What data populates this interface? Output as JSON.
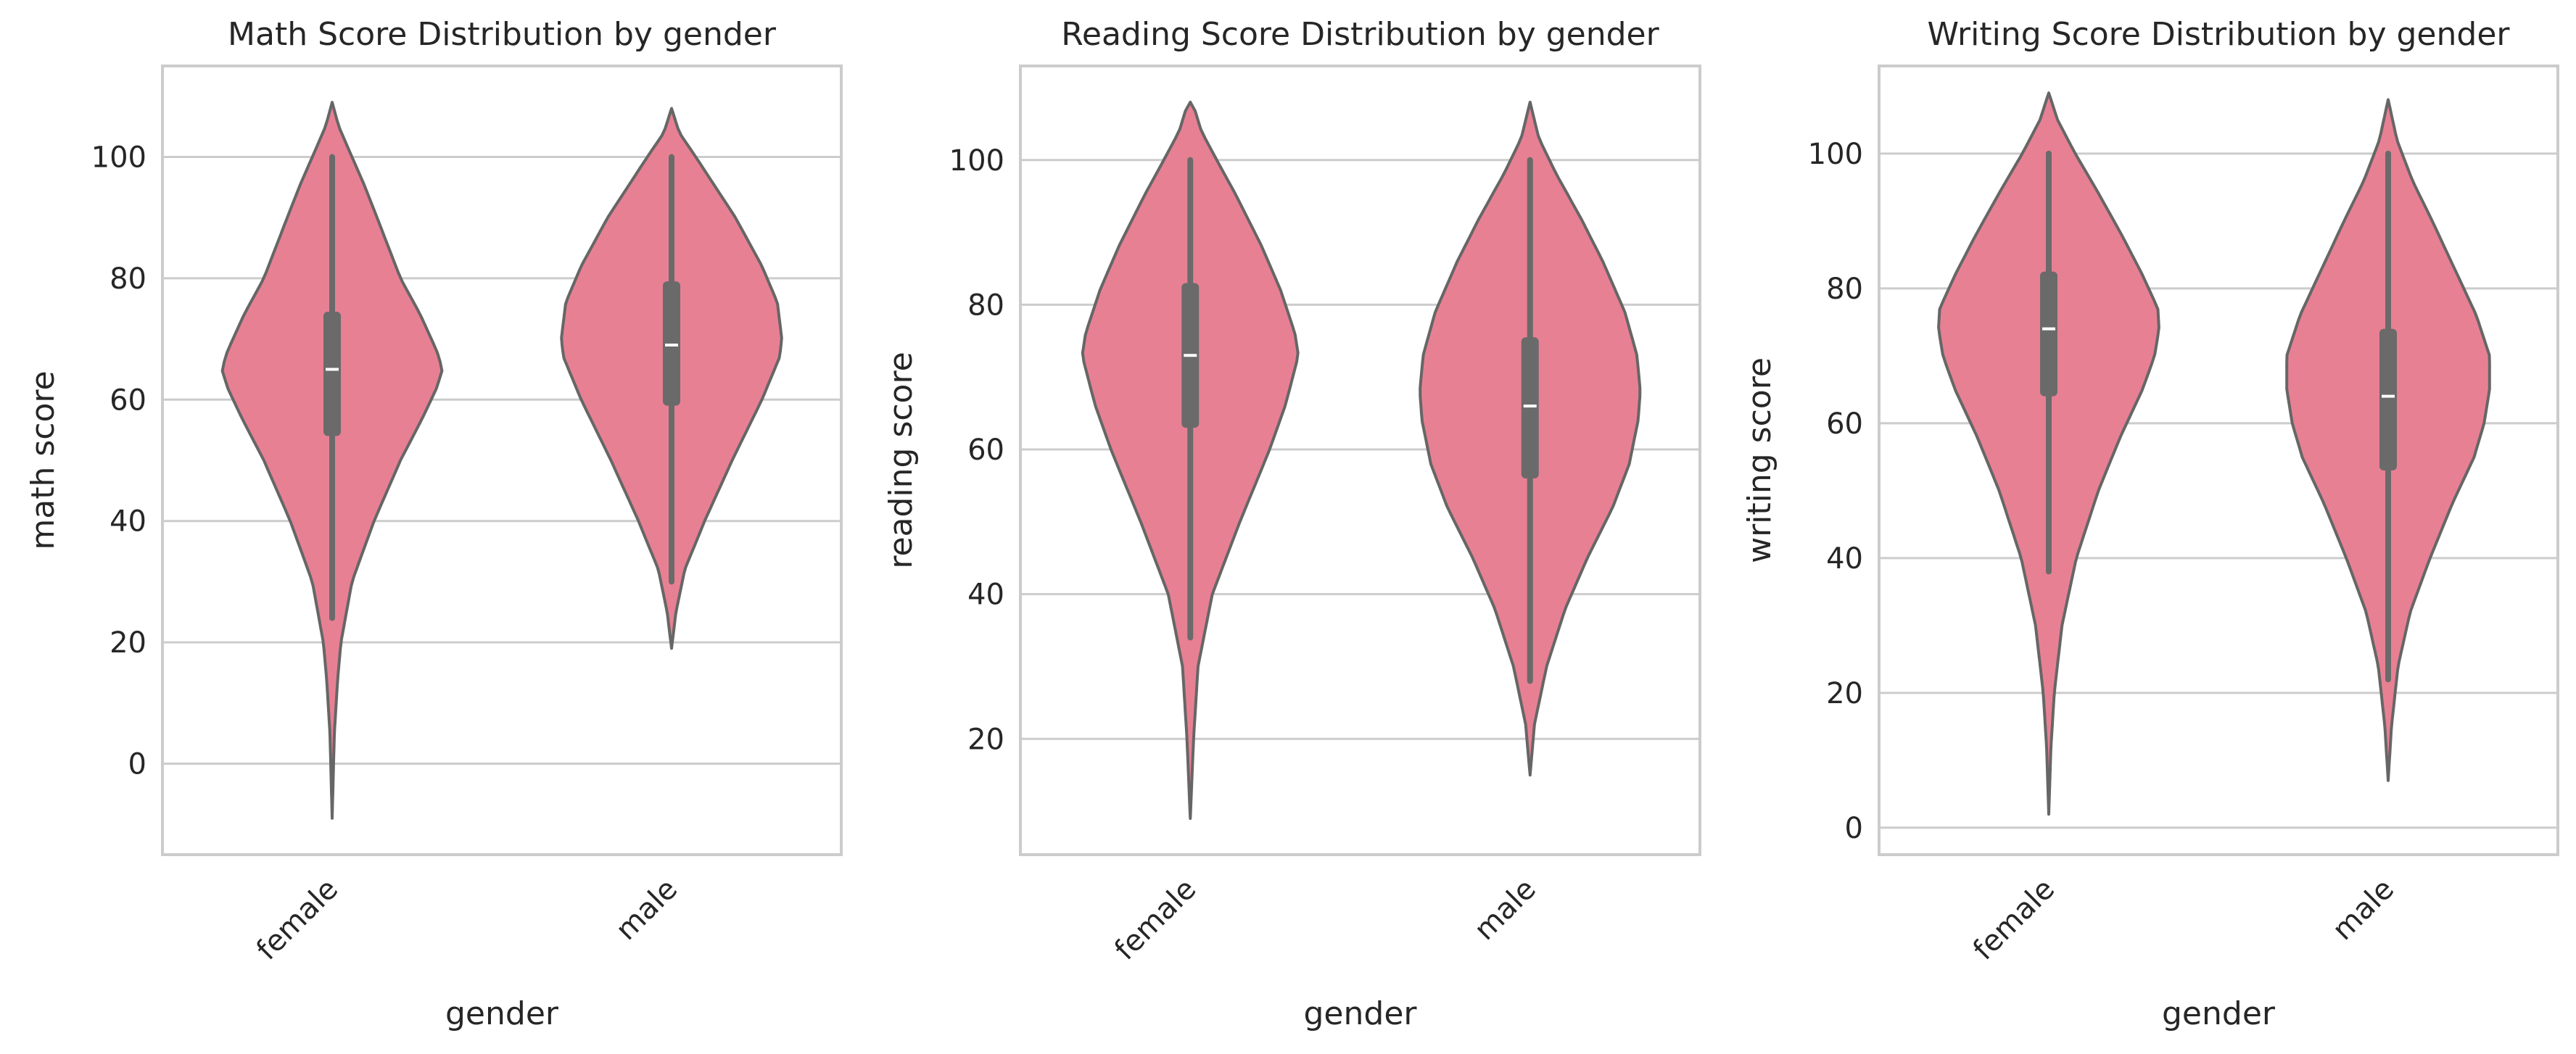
{
  "colors": {
    "violin_fill": "#e88093",
    "violin_edge": "#666666",
    "box": "#6a6a6a",
    "median": "#ffffff",
    "grid": "#cccccc",
    "frame": "#cccccc"
  },
  "chart_data": [
    {
      "type": "violin",
      "title": "Math Score Distribution by gender",
      "xlabel": "gender",
      "ylabel": "math score",
      "categories": [
        "female",
        "male"
      ],
      "ylim": [
        -15,
        115
      ],
      "yticks": [
        0,
        20,
        40,
        60,
        80,
        100
      ],
      "yticklabels": [
        "0",
        "20",
        "40",
        "60",
        "80",
        "100"
      ],
      "grid": true,
      "violins": [
        {
          "category": "female",
          "extent": [
            -9,
            109
          ],
          "box": {
            "q1": 54,
            "median": 65,
            "q3": 74.5,
            "whisker_low": 24,
            "whisker_high": 100
          },
          "profile": [
            [
              -9,
              0
            ],
            [
              5,
              0.02
            ],
            [
              14,
              0.05
            ],
            [
              20,
              0.08
            ],
            [
              30,
              0.18
            ],
            [
              40,
              0.38
            ],
            [
              50,
              0.62
            ],
            [
              57,
              0.82
            ],
            [
              62,
              0.95
            ],
            [
              65,
              1.0
            ],
            [
              68,
              0.95
            ],
            [
              74,
              0.8
            ],
            [
              80,
              0.62
            ],
            [
              88,
              0.45
            ],
            [
              95,
              0.3
            ],
            [
              100,
              0.18
            ],
            [
              105,
              0.06
            ],
            [
              109,
              0
            ]
          ]
        },
        {
          "category": "male",
          "extent": [
            19,
            108
          ],
          "box": {
            "q1": 59,
            "median": 69,
            "q3": 79.5,
            "whisker_low": 30,
            "whisker_high": 100
          },
          "profile": [
            [
              19,
              0
            ],
            [
              25,
              0.04
            ],
            [
              32,
              0.12
            ],
            [
              40,
              0.3
            ],
            [
              50,
              0.55
            ],
            [
              60,
              0.82
            ],
            [
              67,
              0.98
            ],
            [
              70,
              1.0
            ],
            [
              76,
              0.96
            ],
            [
              82,
              0.82
            ],
            [
              90,
              0.58
            ],
            [
              95,
              0.4
            ],
            [
              100,
              0.22
            ],
            [
              104,
              0.07
            ],
            [
              108,
              0
            ]
          ]
        }
      ]
    },
    {
      "type": "violin",
      "title": "Reading Score Distribution by gender",
      "xlabel": "gender",
      "ylabel": "reading score",
      "categories": [
        "female",
        "male"
      ],
      "ylim": [
        4,
        113
      ],
      "yticks": [
        20,
        40,
        60,
        80,
        100
      ],
      "yticklabels": [
        "20",
        "40",
        "60",
        "80",
        "100"
      ],
      "grid": true,
      "violins": [
        {
          "category": "female",
          "extent": [
            9,
            108
          ],
          "box": {
            "q1": 63,
            "median": 73,
            "q3": 83,
            "whisker_low": 34,
            "whisker_high": 100
          },
          "profile": [
            [
              9,
              0
            ],
            [
              20,
              0.03
            ],
            [
              30,
              0.07
            ],
            [
              40,
              0.2
            ],
            [
              50,
              0.45
            ],
            [
              60,
              0.72
            ],
            [
              66,
              0.86
            ],
            [
              70,
              0.93
            ],
            [
              73,
              0.98
            ],
            [
              76,
              0.95
            ],
            [
              82,
              0.82
            ],
            [
              88,
              0.65
            ],
            [
              95,
              0.42
            ],
            [
              100,
              0.24
            ],
            [
              104,
              0.1
            ],
            [
              107,
              0.04
            ],
            [
              108,
              0
            ]
          ]
        },
        {
          "category": "male",
          "extent": [
            15,
            108
          ],
          "box": {
            "q1": 56,
            "median": 66,
            "q3": 75.5,
            "whisker_low": 28,
            "whisker_high": 100
          },
          "profile": [
            [
              15,
              0
            ],
            [
              22,
              0.04
            ],
            [
              30,
              0.15
            ],
            [
              38,
              0.32
            ],
            [
              45,
              0.52
            ],
            [
              52,
              0.75
            ],
            [
              58,
              0.9
            ],
            [
              64,
              0.98
            ],
            [
              68,
              1.0
            ],
            [
              73,
              0.97
            ],
            [
              79,
              0.86
            ],
            [
              86,
              0.66
            ],
            [
              92,
              0.46
            ],
            [
              98,
              0.24
            ],
            [
              103,
              0.08
            ],
            [
              108,
              0
            ]
          ]
        }
      ]
    },
    {
      "type": "violin",
      "title": "Writing Score Distribution by gender",
      "xlabel": "gender",
      "ylabel": "writing score",
      "categories": [
        "female",
        "male"
      ],
      "ylim": [
        -4,
        113
      ],
      "yticks": [
        0,
        20,
        40,
        60,
        80,
        100
      ],
      "yticklabels": [
        "0",
        "20",
        "40",
        "60",
        "80",
        "100"
      ],
      "grid": true,
      "violins": [
        {
          "category": "female",
          "extent": [
            2,
            109
          ],
          "box": {
            "q1": 64,
            "median": 74,
            "q3": 82.5,
            "whisker_low": 38,
            "whisker_high": 100
          },
          "profile": [
            [
              2,
              0
            ],
            [
              12,
              0.02
            ],
            [
              20,
              0.05
            ],
            [
              30,
              0.12
            ],
            [
              40,
              0.25
            ],
            [
              50,
              0.45
            ],
            [
              58,
              0.65
            ],
            [
              65,
              0.85
            ],
            [
              70,
              0.96
            ],
            [
              74,
              1.0
            ],
            [
              77,
              0.99
            ],
            [
              82,
              0.85
            ],
            [
              88,
              0.66
            ],
            [
              95,
              0.42
            ],
            [
              100,
              0.24
            ],
            [
              105,
              0.08
            ],
            [
              109,
              0
            ]
          ]
        },
        {
          "category": "male",
          "extent": [
            7,
            108
          ],
          "box": {
            "q1": 53,
            "median": 64,
            "q3": 74,
            "whisker_low": 22,
            "whisker_high": 100
          },
          "profile": [
            [
              7,
              0
            ],
            [
              15,
              0.03
            ],
            [
              24,
              0.09
            ],
            [
              32,
              0.2
            ],
            [
              40,
              0.38
            ],
            [
              48,
              0.58
            ],
            [
              55,
              0.78
            ],
            [
              60,
              0.87
            ],
            [
              65,
              0.92
            ],
            [
              70,
              0.92
            ],
            [
              76,
              0.8
            ],
            [
              83,
              0.6
            ],
            [
              90,
              0.4
            ],
            [
              96,
              0.22
            ],
            [
              102,
              0.08
            ],
            [
              108,
              0
            ]
          ]
        }
      ]
    }
  ]
}
